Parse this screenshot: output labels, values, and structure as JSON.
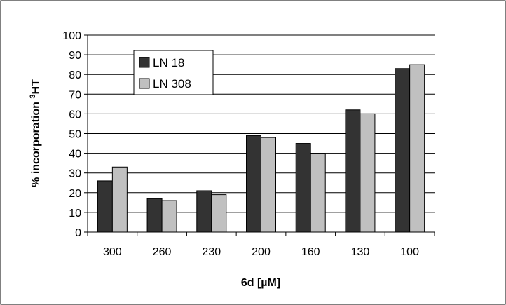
{
  "chart_data": {
    "type": "bar",
    "categories": [
      "300",
      "260",
      "230",
      "200",
      "160",
      "130",
      "100"
    ],
    "series": [
      {
        "name": "LN 18",
        "values": [
          26,
          17,
          21,
          49,
          45,
          62,
          83
        ],
        "color": "#333333"
      },
      {
        "name": "LN 308",
        "values": [
          33,
          16,
          19,
          48,
          40,
          60,
          85
        ],
        "color": "#c0c0c0"
      }
    ],
    "xlabel": "6d [µM]",
    "ylabel": {
      "main": "% incorporation ",
      "sup": "3",
      "tail": "HT"
    },
    "ylim": [
      0,
      100
    ],
    "yticks": [
      0,
      10,
      20,
      30,
      40,
      50,
      60,
      70,
      80,
      90,
      100
    ],
    "grid": true,
    "legend_position": "top-left"
  }
}
